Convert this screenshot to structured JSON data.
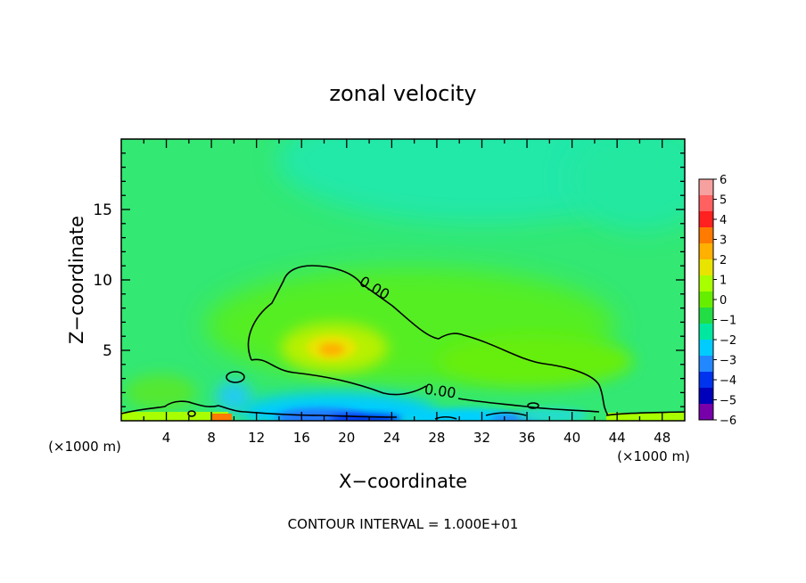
{
  "chart_data": {
    "type": "contour",
    "title": "zonal velocity",
    "xlabel": "X−coordinate",
    "ylabel": "Z−coordinate",
    "x_unit_left": "(×1000 m)",
    "x_unit_right": "(×1000 m)",
    "footer": "CONTOUR INTERVAL = 1.000E+01",
    "xlim": [
      0,
      50
    ],
    "ylim": [
      0,
      20
    ],
    "x_ticks": [
      4,
      8,
      12,
      16,
      20,
      24,
      28,
      32,
      36,
      40,
      44,
      48
    ],
    "y_ticks": [
      5,
      10,
      15
    ],
    "contour_labels": [
      "0.00",
      "0.00"
    ],
    "colorbar": {
      "labels": [
        "6",
        "5",
        "4",
        "3",
        "2",
        "1",
        "0",
        "−1",
        "−2",
        "−3",
        "−4",
        "−5",
        "−6"
      ],
      "colors": [
        "#f7a0a0",
        "#ff6060",
        "#ff2020",
        "#ff7a00",
        "#ffb000",
        "#e8e400",
        "#a8ff00",
        "#66ee00",
        "#22dd44",
        "#00e8a0",
        "#00ccff",
        "#2288ff",
        "#0033ee",
        "#0000bb",
        "#7700aa"
      ]
    }
  }
}
